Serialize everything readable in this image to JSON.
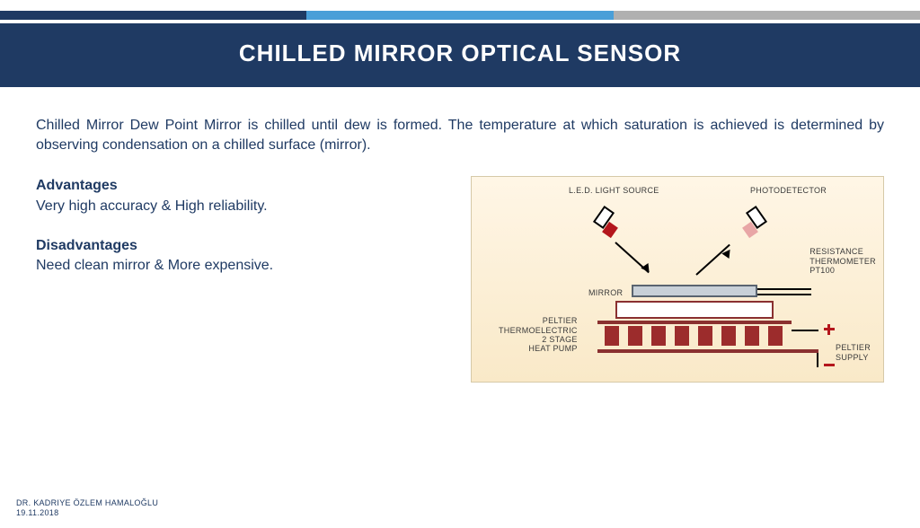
{
  "accent_colors": [
    "#1f3a63",
    "#4a9fd8",
    "#b0b0b0"
  ],
  "title": "CHILLED MIRROR OPTICAL SENSOR",
  "intro": "Chilled Mirror Dew Point Mirror is chilled until dew is formed. The temperature at which saturation is achieved is determined by observing condensation on a chilled surface (mirror).",
  "sections": {
    "adv_heading": "Advantages",
    "adv_body": "Very high accuracy & High reliability.",
    "dis_heading": "Disadvantages",
    "dis_body": "Need clean mirror & More expensive."
  },
  "diagram": {
    "bg_gradient_top": "#fff6e6",
    "bg_gradient_bottom": "#f9e9c8",
    "labels": {
      "led": "L.E.D. LIGHT SOURCE",
      "photo": "PHOTODETECTOR",
      "mirror": "MIRROR",
      "rt": "RESISTANCE\nTHERMOMETER\nPT100",
      "peltier": "PELTIER\nTHERMOELECTRIC\n2 STAGE\nHEAT PUMP",
      "supply": "PELTIER\nSUPPLY"
    },
    "colors": {
      "led_fill": "#b4161c",
      "photo_fill": "#e8a6a6",
      "mirror_fill": "#c8d0d8",
      "mirror_border": "#5a6470",
      "peltier_seg": "#9c2c2c",
      "peltier_border": "#8a3030",
      "plus_minus": "#b4161c"
    },
    "peltier_seg_count": 8
  },
  "footer": {
    "author": "DR. KADRIYE ÖZLEM HAMALOĞLU",
    "date": "19.11.2018"
  }
}
